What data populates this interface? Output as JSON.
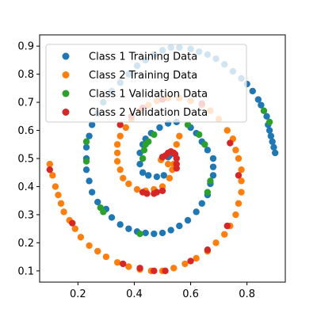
{
  "chart_data": {
    "type": "scatter",
    "title": "",
    "xlabel": "",
    "ylabel": "",
    "xlim": [
      0.064,
      0.936
    ],
    "ylim": [
      0.06,
      0.94
    ],
    "xticks": [
      0.2,
      0.4,
      0.6,
      0.8
    ],
    "xtick_labels": [
      "0.2",
      "0.4",
      "0.6",
      "0.8"
    ],
    "yticks": [
      0.1,
      0.2,
      0.3,
      0.4,
      0.5,
      0.6,
      0.7,
      0.8,
      0.9
    ],
    "ytick_labels": [
      "0.1",
      "0.2",
      "0.3",
      "0.4",
      "0.5",
      "0.6",
      "0.7",
      "0.8",
      "0.9"
    ],
    "grid": false,
    "legend_position": "top-left",
    "series": [
      {
        "name": "Class 1 Training Data",
        "color": "#1f77b4",
        "points": [
          [
            0.53,
            0.52
          ],
          [
            0.525,
            0.51
          ],
          [
            0.52,
            0.505
          ],
          [
            0.505,
            0.44
          ],
          [
            0.48,
            0.435
          ],
          [
            0.45,
            0.44
          ],
          [
            0.43,
            0.45
          ],
          [
            0.42,
            0.48
          ],
          [
            0.42,
            0.52
          ],
          [
            0.43,
            0.55
          ],
          [
            0.44,
            0.57
          ],
          [
            0.46,
            0.59
          ],
          [
            0.49,
            0.61
          ],
          [
            0.52,
            0.625
          ],
          [
            0.55,
            0.63
          ],
          [
            0.6,
            0.61
          ],
          [
            0.62,
            0.59
          ],
          [
            0.64,
            0.56
          ],
          [
            0.66,
            0.53
          ],
          [
            0.68,
            0.5
          ],
          [
            0.68,
            0.47
          ],
          [
            0.68,
            0.44
          ],
          [
            0.67,
            0.41
          ],
          [
            0.66,
            0.37
          ],
          [
            0.64,
            0.34
          ],
          [
            0.62,
            0.31
          ],
          [
            0.59,
            0.28
          ],
          [
            0.56,
            0.26
          ],
          [
            0.53,
            0.245
          ],
          [
            0.5,
            0.235
          ],
          [
            0.47,
            0.232
          ],
          [
            0.44,
            0.235
          ],
          [
            0.41,
            0.24
          ],
          [
            0.38,
            0.25
          ],
          [
            0.35,
            0.265
          ],
          [
            0.32,
            0.29
          ],
          [
            0.3,
            0.32
          ],
          [
            0.27,
            0.345
          ],
          [
            0.25,
            0.38
          ],
          [
            0.24,
            0.42
          ],
          [
            0.23,
            0.46
          ],
          [
            0.23,
            0.5
          ],
          [
            0.23,
            0.54
          ],
          [
            0.24,
            0.58
          ],
          [
            0.25,
            0.62
          ],
          [
            0.27,
            0.66
          ],
          [
            0.29,
            0.7
          ],
          [
            0.32,
            0.74
          ],
          [
            0.35,
            0.77
          ],
          [
            0.38,
            0.8
          ],
          [
            0.41,
            0.83
          ],
          [
            0.44,
            0.85
          ],
          [
            0.47,
            0.87
          ],
          [
            0.5,
            0.885
          ],
          [
            0.53,
            0.895
          ],
          [
            0.56,
            0.895
          ],
          [
            0.6,
            0.89
          ],
          [
            0.63,
            0.88
          ],
          [
            0.66,
            0.87
          ],
          [
            0.69,
            0.855
          ],
          [
            0.72,
            0.835
          ],
          [
            0.75,
            0.81
          ],
          [
            0.78,
            0.785
          ],
          [
            0.8,
            0.765
          ],
          [
            0.82,
            0.74
          ],
          [
            0.84,
            0.71
          ],
          [
            0.85,
            0.69
          ],
          [
            0.87,
            0.65
          ],
          [
            0.875,
            0.62
          ],
          [
            0.88,
            0.6
          ],
          [
            0.885,
            0.58
          ],
          [
            0.89,
            0.56
          ],
          [
            0.895,
            0.54
          ],
          [
            0.9,
            0.52
          ]
        ]
      },
      {
        "name": "Class 2 Training Data",
        "color": "#ff7f0e",
        "points": [
          [
            0.495,
            0.495
          ],
          [
            0.5,
            0.505
          ],
          [
            0.52,
            0.48
          ],
          [
            0.56,
            0.58
          ],
          [
            0.55,
            0.55
          ],
          [
            0.54,
            0.48
          ],
          [
            0.535,
            0.46
          ],
          [
            0.525,
            0.43
          ],
          [
            0.5,
            0.4
          ],
          [
            0.47,
            0.39
          ],
          [
            0.44,
            0.385
          ],
          [
            0.41,
            0.39
          ],
          [
            0.38,
            0.41
          ],
          [
            0.36,
            0.43
          ],
          [
            0.35,
            0.46
          ],
          [
            0.34,
            0.49
          ],
          [
            0.34,
            0.52
          ],
          [
            0.34,
            0.55
          ],
          [
            0.35,
            0.58
          ],
          [
            0.37,
            0.61
          ],
          [
            0.39,
            0.64
          ],
          [
            0.42,
            0.67
          ],
          [
            0.45,
            0.69
          ],
          [
            0.48,
            0.705
          ],
          [
            0.52,
            0.715
          ],
          [
            0.56,
            0.715
          ],
          [
            0.6,
            0.705
          ],
          [
            0.64,
            0.69
          ],
          [
            0.67,
            0.67
          ],
          [
            0.7,
            0.64
          ],
          [
            0.73,
            0.6
          ],
          [
            0.75,
            0.57
          ],
          [
            0.76,
            0.53
          ],
          [
            0.77,
            0.5
          ],
          [
            0.78,
            0.46
          ],
          [
            0.78,
            0.42
          ],
          [
            0.78,
            0.38
          ],
          [
            0.77,
            0.34
          ],
          [
            0.76,
            0.3
          ],
          [
            0.74,
            0.26
          ],
          [
            0.72,
            0.23
          ],
          [
            0.69,
            0.2
          ],
          [
            0.66,
            0.17
          ],
          [
            0.62,
            0.145
          ],
          [
            0.58,
            0.125
          ],
          [
            0.54,
            0.11
          ],
          [
            0.5,
            0.1
          ],
          [
            0.46,
            0.1
          ],
          [
            0.42,
            0.105
          ],
          [
            0.38,
            0.115
          ],
          [
            0.34,
            0.13
          ],
          [
            0.3,
            0.15
          ],
          [
            0.27,
            0.17
          ],
          [
            0.24,
            0.19
          ],
          [
            0.21,
            0.22
          ],
          [
            0.19,
            0.25
          ],
          [
            0.17,
            0.28
          ],
          [
            0.15,
            0.31
          ],
          [
            0.14,
            0.34
          ],
          [
            0.13,
            0.37
          ],
          [
            0.12,
            0.4
          ],
          [
            0.11,
            0.44
          ],
          [
            0.1,
            0.48
          ]
        ]
      },
      {
        "name": "Class 1 Validation Data",
        "color": "#2ca02c",
        "points": [
          [
            0.43,
            0.5
          ],
          [
            0.435,
            0.53
          ],
          [
            0.44,
            0.55
          ],
          [
            0.45,
            0.56
          ],
          [
            0.47,
            0.585
          ],
          [
            0.59,
            0.62
          ],
          [
            0.63,
            0.585
          ],
          [
            0.65,
            0.55
          ],
          [
            0.67,
            0.42
          ],
          [
            0.66,
            0.38
          ],
          [
            0.28,
            0.325
          ],
          [
            0.29,
            0.31
          ],
          [
            0.42,
            0.232
          ],
          [
            0.23,
            0.49
          ],
          [
            0.23,
            0.56
          ],
          [
            0.86,
            0.67
          ],
          [
            0.88,
            0.63
          ]
        ]
      },
      {
        "name": "Class 2 Validation Data",
        "color": "#d62728",
        "points": [
          [
            0.52,
            0.52
          ],
          [
            0.53,
            0.525
          ],
          [
            0.54,
            0.52
          ],
          [
            0.545,
            0.515
          ],
          [
            0.55,
            0.5
          ],
          [
            0.55,
            0.48
          ],
          [
            0.55,
            0.465
          ],
          [
            0.5,
            0.505
          ],
          [
            0.51,
            0.51
          ],
          [
            0.43,
            0.38
          ],
          [
            0.445,
            0.375
          ],
          [
            0.47,
            0.375
          ],
          [
            0.48,
            0.38
          ],
          [
            0.5,
            0.385
          ],
          [
            0.35,
            0.62
          ],
          [
            0.39,
            0.65
          ],
          [
            0.43,
            0.68
          ],
          [
            0.5,
            0.71
          ],
          [
            0.64,
            0.695
          ],
          [
            0.74,
            0.555
          ],
          [
            0.77,
            0.44
          ],
          [
            0.73,
            0.26
          ],
          [
            0.66,
            0.175
          ],
          [
            0.6,
            0.135
          ],
          [
            0.51,
            0.1
          ],
          [
            0.47,
            0.1
          ],
          [
            0.42,
            0.11
          ],
          [
            0.36,
            0.125
          ],
          [
            0.18,
            0.27
          ],
          [
            0.1,
            0.46
          ]
        ]
      }
    ]
  }
}
